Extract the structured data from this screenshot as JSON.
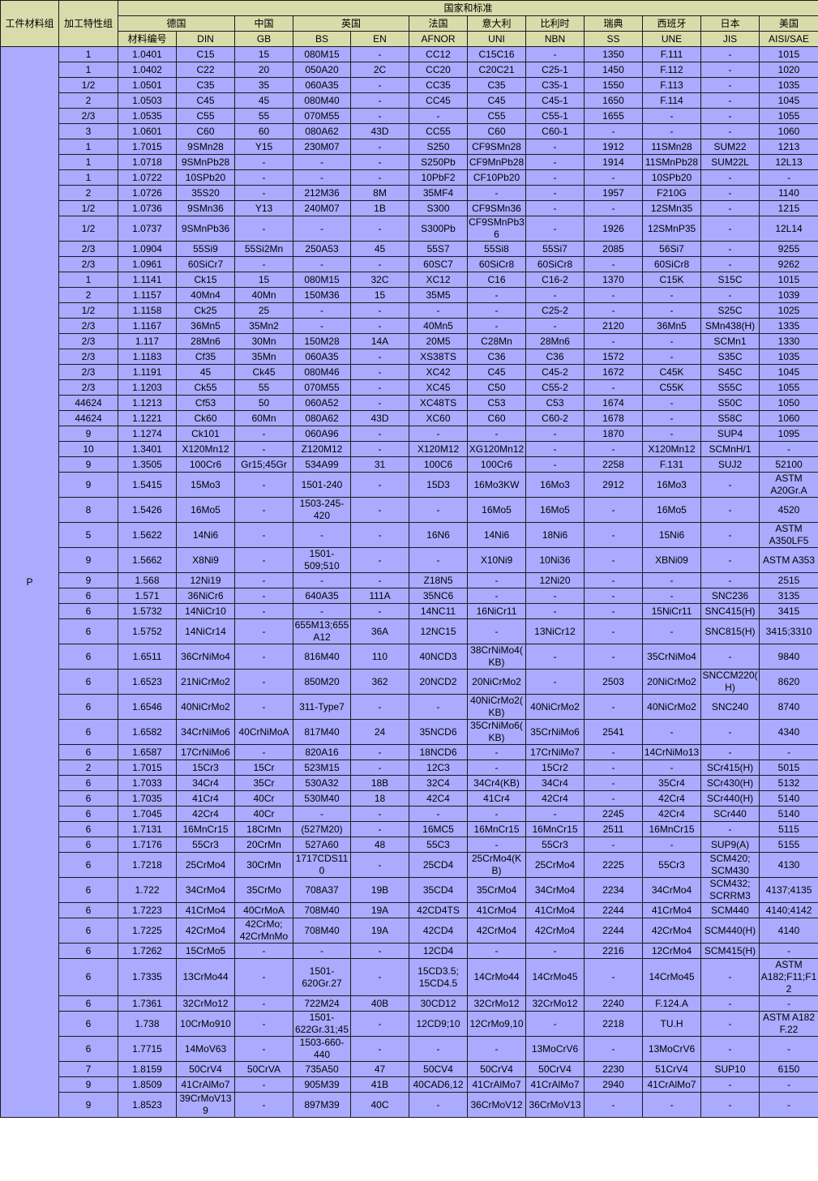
{
  "colors": {
    "header_bg": "#d8dcaa",
    "body_bg": "#aaaaff",
    "border": "#1a1a1a"
  },
  "header": {
    "material_group": "工件材料组",
    "machining_group": "加工特性组",
    "standards": "国家和标准",
    "countries": {
      "germany": "德国",
      "china": "中国",
      "uk": "英国",
      "france": "法国",
      "italy": "意大利",
      "belgium": "比利时",
      "sweden": "瑞典",
      "spain": "西班牙",
      "japan": "日本",
      "usa": "美国"
    },
    "codes": [
      "材料编号",
      "DIN",
      "GB",
      "BS",
      "EN",
      "AFNOR",
      "UNI",
      "NBN",
      "SS",
      "UNE",
      "JIS",
      "AISI/SAE"
    ]
  },
  "material_group_value": "P",
  "rows": [
    [
      "1",
      "1.0401",
      "C15",
      "15",
      "080M15",
      "-",
      "CC12",
      "C15C16",
      "-",
      "1350",
      "F.111",
      "-",
      "1015"
    ],
    [
      "1",
      "1.0402",
      "C22",
      "20",
      "050A20",
      "2C",
      "CC20",
      "C20C21",
      "C25-1",
      "1450",
      "F.112",
      "-",
      "1020"
    ],
    [
      "1/2",
      "1.0501",
      "C35",
      "35",
      "060A35",
      "-",
      "CC35",
      "C35",
      "C35-1",
      "1550",
      "F.113",
      "-",
      "1035"
    ],
    [
      "2",
      "1.0503",
      "C45",
      "45",
      "080M40",
      "-",
      "CC45",
      "C45",
      "C45-1",
      "1650",
      "F.114",
      "-",
      "1045"
    ],
    [
      "2/3",
      "1.0535",
      "C55",
      "55",
      "070M55",
      "-",
      "-",
      "C55",
      "C55-1",
      "1655",
      "-",
      "-",
      "1055"
    ],
    [
      "3",
      "1.0601",
      "C60",
      "60",
      "080A62",
      "43D",
      "CC55",
      "C60",
      "C60-1",
      "-",
      "-",
      "-",
      "1060"
    ],
    [
      "1",
      "1.7015",
      "9SMn28",
      "Y15",
      "230M07",
      "-",
      "S250",
      "CF9SMn28",
      "-",
      "1912",
      "11SMn28",
      "SUM22",
      "1213"
    ],
    [
      "1",
      "1.0718",
      "9SMnPb28",
      "-",
      "-",
      "-",
      "S250Pb",
      "CF9MnPb28",
      "-",
      "1914",
      "11SMnPb28",
      "SUM22L",
      "12L13"
    ],
    [
      "1",
      "1.0722",
      "10SPb20",
      "-",
      "-",
      "-",
      "10PbF2",
      "CF10Pb20",
      "-",
      "-",
      "10SPb20",
      "-",
      "-"
    ],
    [
      "2",
      "1.0726",
      "35S20",
      "-",
      "212M36",
      "8M",
      "35MF4",
      "-",
      "-",
      "1957",
      "F210G",
      "-",
      "1140"
    ],
    [
      "1/2",
      "1.0736",
      "9SMn36",
      "Y13",
      "240M07",
      "1B",
      "S300",
      "CF9SMn36",
      "-",
      "-",
      "12SMn35",
      "-",
      "1215"
    ],
    [
      "1/2",
      "1.0737",
      "9SMnPb36",
      "-",
      "-",
      "-",
      "S300Pb",
      "CF9SMnPb36",
      "-",
      "1926",
      "12SMnP35",
      "-",
      "12L14"
    ],
    [
      "2/3",
      "1.0904",
      "55Si9",
      "55Si2Mn",
      "250A53",
      "45",
      "55S7",
      "55Si8",
      "55Si7",
      "2085",
      "56Si7",
      "-",
      "9255"
    ],
    [
      "2/3",
      "1.0961",
      "60SiCr7",
      "-",
      "-",
      "-",
      "60SC7",
      "60SiCr8",
      "60SiCr8",
      "-",
      "60SiCr8",
      "-",
      "9262"
    ],
    [
      "1",
      "1.1141",
      "Ck15",
      "15",
      "080M15",
      "32C",
      "XC12",
      "C16",
      "C16-2",
      "1370",
      "C15K",
      "S15C",
      "1015"
    ],
    [
      "2",
      "1.1157",
      "40Mn4",
      "40Mn",
      "150M36",
      "15",
      "35M5",
      "-",
      "-",
      "-",
      "-",
      "-",
      "1039"
    ],
    [
      "1/2",
      "1.1158",
      "Ck25",
      "25",
      "-",
      "-",
      "-",
      "-",
      "C25-2",
      "-",
      "-",
      "S25C",
      "1025"
    ],
    [
      "2/3",
      "1.1167",
      "36Mn5",
      "35Mn2",
      "-",
      "-",
      "40Mn5",
      "-",
      "-",
      "2120",
      "36Mn5",
      "SMn438(H)",
      "1335"
    ],
    [
      "2/3",
      "1.117",
      "28Mn6",
      "30Mn",
      "150M28",
      "14A",
      "20M5",
      "C28Mn",
      "28Mn6",
      "-",
      "-",
      "SCMn1",
      "1330"
    ],
    [
      "2/3",
      "1.1183",
      "Cf35",
      "35Mn",
      "060A35",
      "-",
      "XS38TS",
      "C36",
      "C36",
      "1572",
      "-",
      "S35C",
      "1035"
    ],
    [
      "2/3",
      "1.1191",
      "45",
      "Ck45",
      "080M46",
      "-",
      "XC42",
      "C45",
      "C45-2",
      "1672",
      "C45K",
      "S45C",
      "1045"
    ],
    [
      "2/3",
      "1.1203",
      "Ck55",
      "55",
      "070M55",
      "-",
      "XC45",
      "C50",
      "C55-2",
      "-",
      "C55K",
      "S55C",
      "1055"
    ],
    [
      "44624",
      "1.1213",
      "Cf53",
      "50",
      "060A52",
      "-",
      "XC48TS",
      "C53",
      "C53",
      "1674",
      "-",
      "S50C",
      "1050"
    ],
    [
      "44624",
      "1.1221",
      "Ck60",
      "60Mn",
      "080A62",
      "43D",
      "XC60",
      "C60",
      "C60-2",
      "1678",
      "-",
      "S58C",
      "1060"
    ],
    [
      "9",
      "1.1274",
      "Ck101",
      "-",
      "060A96",
      "-",
      "-",
      "-",
      "-",
      "1870",
      "-",
      "SUP4",
      "1095"
    ],
    [
      "10",
      "1.3401",
      "X120Mn12",
      "-",
      "Z120M12",
      "-",
      "X120M12",
      "XG120Mn12",
      "-",
      "-",
      "X120Mn12",
      "SCMnH/1",
      "-"
    ],
    [
      "9",
      "1.3505",
      "100Cr6",
      "Gr15;45Gr",
      "534A99",
      "31",
      "100C6",
      "100Cr6",
      "-",
      "2258",
      "F.131",
      "SUJ2",
      "52100"
    ],
    [
      "9",
      "1.5415",
      "15Mo3",
      "-",
      "1501-240",
      "-",
      "15D3",
      "16Mo3KW",
      "16Mo3",
      "2912",
      "16Mo3",
      "-",
      "ASTM A20Gr.A"
    ],
    [
      "8",
      "1.5426",
      "16Mo5",
      "-",
      "1503-245-420",
      "-",
      "-",
      "16Mo5",
      "16Mo5",
      "-",
      "16Mo5",
      "-",
      "4520"
    ],
    [
      "5",
      "1.5622",
      "14Ni6",
      "-",
      "-",
      "-",
      "16N6",
      "14Ni6",
      "18Ni6",
      "-",
      "15Ni6",
      "-",
      "ASTM A350LF5"
    ],
    [
      "9",
      "1.5662",
      "X8Ni9",
      "-",
      "1501-509;510",
      "-",
      "-",
      "X10Ni9",
      "10Ni36",
      "-",
      "XBNi09",
      "-",
      "ASTM A353"
    ],
    [
      "9",
      "1.568",
      "12Ni19",
      "-",
      "-",
      "-",
      "Z18N5",
      "-",
      "12Ni20",
      "-",
      "-",
      "-",
      "2515"
    ],
    [
      "6",
      "1.571",
      "36NiCr6",
      "-",
      "640A35",
      "111A",
      "35NC6",
      "-",
      "-",
      "-",
      "-",
      "SNC236",
      "3135"
    ],
    [
      "6",
      "1.5732",
      "14NiCr10",
      "-",
      "-",
      "-",
      "14NC11",
      "16NiCr11",
      "-",
      "-",
      "15NiCr11",
      "SNC415(H)",
      "3415"
    ],
    [
      "6",
      "1.5752",
      "14NiCr14",
      "-",
      "655M13;655A12",
      "36A",
      "12NC15",
      "-",
      "13NiCr12",
      "-",
      "-",
      "SNC815(H)",
      "3415;3310"
    ],
    [
      "6",
      "1.6511",
      "36CrNiMo4",
      "-",
      "816M40",
      "110",
      "40NCD3",
      "38CrNiMo4(KB)",
      "-",
      "-",
      "35CrNiMo4",
      "-",
      "9840"
    ],
    [
      "6",
      "1.6523",
      "21NiCrMo2",
      "-",
      "850M20",
      "362",
      "20NCD2",
      "20NiCrMo2",
      "-",
      "2503",
      "20NiCrMo2",
      "SNCCM220(H)",
      "8620"
    ],
    [
      "6",
      "1.6546",
      "40NiCrMo2",
      "-",
      "311-Type7",
      "-",
      "-",
      "40NiCrMo2(KB)",
      "40NiCrMo2",
      "-",
      "40NiCrMo2",
      "SNC240",
      "8740"
    ],
    [
      "6",
      "1.6582",
      "34CrNiMo6",
      "40CrNiMoA",
      "817M40",
      "24",
      "35NCD6",
      "35CrNiMo6(KB)",
      "35CrNiMo6",
      "2541",
      "-",
      "-",
      "4340"
    ],
    [
      "6",
      "1.6587",
      "17CrNiMo6",
      "-",
      "820A16",
      "-",
      "18NCD6",
      "-",
      "17CrNiMo7",
      "-",
      "14CrNiMo13",
      "-",
      "-"
    ],
    [
      "2",
      "1.7015",
      "15Cr3",
      "15Cr",
      "523M15",
      "-",
      "12C3",
      "-",
      "15Cr2",
      "-",
      "-",
      "SCr415(H)",
      "5015"
    ],
    [
      "6",
      "1.7033",
      "34Cr4",
      "35Cr",
      "530A32",
      "18B",
      "32C4",
      "34Cr4(KB)",
      "34Cr4",
      "-",
      "35Cr4",
      "SCr430(H)",
      "5132"
    ],
    [
      "6",
      "1.7035",
      "41Cr4",
      "40Cr",
      "530M40",
      "18",
      "42C4",
      "41Cr4",
      "42Cr4",
      "-",
      "42Cr4",
      "SCr440(H)",
      "5140"
    ],
    [
      "6",
      "1.7045",
      "42Cr4",
      "40Cr",
      "-",
      "-",
      "-",
      "-",
      "-",
      "2245",
      "42Cr4",
      "SCr440",
      "5140"
    ],
    [
      "6",
      "1.7131",
      "16MnCr15",
      "18CrMn",
      "(527M20)",
      "-",
      "16MC5",
      "16MnCr15",
      "16MnCr15",
      "2511",
      "16MnCr15",
      "-",
      "5115"
    ],
    [
      "6",
      "1.7176",
      "55Cr3",
      "20CrMn",
      "527A60",
      "48",
      "55C3",
      "-",
      "55Cr3",
      "-",
      "-",
      "SUP9(A)",
      "5155"
    ],
    [
      "6",
      "1.7218",
      "25CrMo4",
      "30CrMn",
      "1717CDS110",
      "-",
      "25CD4",
      "25CrMo4(KB)",
      "25CrMo4",
      "2225",
      "55Cr3",
      "SCM420; SCM430",
      "4130"
    ],
    [
      "6",
      "1.722",
      "34CrMo4",
      "35CrMo",
      "708A37",
      "19B",
      "35CD4",
      "35CrMo4",
      "34CrMo4",
      "2234",
      "34CrMo4",
      "SCM432; SCRRM3",
      "4137;4135"
    ],
    [
      "6",
      "1.7223",
      "41CrMo4",
      "40CrMoA",
      "708M40",
      "19A",
      "42CD4TS",
      "41CrMo4",
      "41CrMo4",
      "2244",
      "41CrMo4",
      "SCM440",
      "4140;4142"
    ],
    [
      "6",
      "1.7225",
      "42CrMo4",
      "42CrMo; 42CrMnMo",
      "708M40",
      "19A",
      "42CD4",
      "42CrMo4",
      "42CrMo4",
      "2244",
      "42CrMo4",
      "SCM440(H)",
      "4140"
    ],
    [
      "6",
      "1.7262",
      "15CrMo5",
      "-",
      "-",
      "-",
      "12CD4",
      "-",
      "-",
      "2216",
      "12CrMo4",
      "SCM415(H)",
      "-"
    ],
    [
      "6",
      "1.7335",
      "13CrMo44",
      "-",
      "1501-620Gr.27",
      "-",
      "15CD3.5; 15CD4.5",
      "14CrMo44",
      "14CrMo45",
      "-",
      "14CrMo45",
      "-",
      "ASTM A182;F11;F12"
    ],
    [
      "6",
      "1.7361",
      "32CrMo12",
      "-",
      "722M24",
      "40B",
      "30CD12",
      "32CrMo12",
      "32CrMo12",
      "2240",
      "F.124.A",
      "-",
      "-"
    ],
    [
      "6",
      "1.738",
      "10CrMo910",
      "-",
      "1501-622Gr.31;45",
      "-",
      "12CD9;10",
      "12CrMo9,10",
      "-",
      "2218",
      "TU.H",
      "-",
      "ASTM A182 F.22"
    ],
    [
      "6",
      "1.7715",
      "14MoV63",
      "-",
      "1503-660-440",
      "-",
      "-",
      "-",
      "13MoCrV6",
      "-",
      "13MoCrV6",
      "-",
      "-"
    ],
    [
      "7",
      "1.8159",
      "50CrV4",
      "50CrVA",
      "735A50",
      "47",
      "50CV4",
      "50CrV4",
      "50CrV4",
      "2230",
      "51CrV4",
      "SUP10",
      "6150"
    ],
    [
      "9",
      "1.8509",
      "41CrAlMo7",
      "-",
      "905M39",
      "41B",
      "40CAD6,12",
      "41CrAlMo7",
      "41CrAlMo7",
      "2940",
      "41CrAlMo7",
      "-",
      "-"
    ],
    [
      "9",
      "1.8523",
      "39CrMoV139",
      "-",
      "897M39",
      "40C",
      "-",
      "36CrMoV12",
      "36CrMoV13",
      "-",
      "-",
      "-",
      "-"
    ]
  ]
}
